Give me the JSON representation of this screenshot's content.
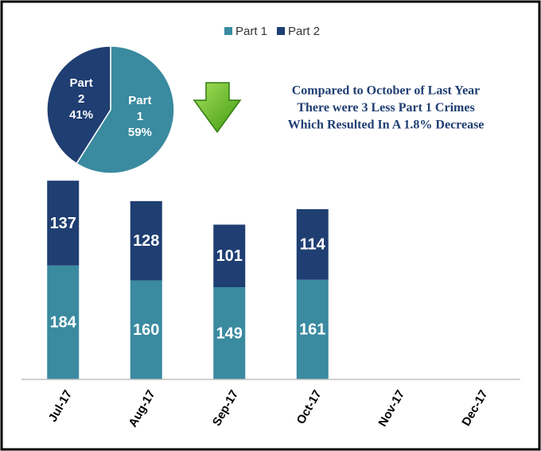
{
  "chart_data": [
    {
      "type": "bar",
      "categories": [
        "Jul-17",
        "Aug-17",
        "Sep-17",
        "Oct-17",
        "Nov-17",
        "Dec-17"
      ],
      "series": [
        {
          "name": "Part 1",
          "color": "#3a8aa0",
          "values": [
            184,
            160,
            149,
            161,
            null,
            null
          ]
        },
        {
          "name": "Part 2",
          "color": "#1f3e72",
          "values": [
            137,
            128,
            101,
            114,
            null,
            null
          ]
        }
      ],
      "stacked": true,
      "ylim": [
        0,
        600
      ],
      "legend": "top",
      "annotation": [
        "Compared to October of Last Year",
        "There were 3 Less Part 1 Crimes",
        "Which Resulted In A 1.8% Decrease"
      ]
    },
    {
      "type": "pie",
      "categories": [
        "Part 1",
        "Part 2"
      ],
      "values": [
        59,
        41
      ],
      "value_labels": [
        "59%",
        "41%"
      ],
      "colors": [
        "#3a8aa0",
        "#1f3e72"
      ]
    }
  ]
}
